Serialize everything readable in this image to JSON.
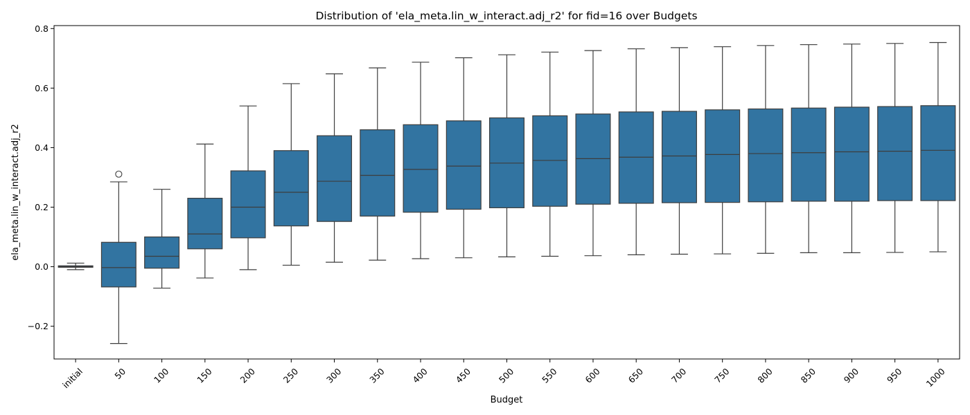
{
  "chart_data": {
    "type": "box",
    "title": "Distribution of 'ela_meta.lin_w_interact.adj_r2' for fid=16 over Budgets",
    "xlabel": "Budget",
    "ylabel": "ela_meta.lin_w_interact.adj_r2",
    "ylim": [
      -0.31,
      0.81
    ],
    "yticks": [
      -0.2,
      0.0,
      0.2,
      0.4,
      0.6,
      0.8
    ],
    "ytick_labels": [
      "−0.2",
      "0.0",
      "0.2",
      "0.4",
      "0.6",
      "0.8"
    ],
    "grid": false,
    "box_color": "#3274a1",
    "line_color": "#3d3d3d",
    "categories": [
      "initial",
      "50",
      "100",
      "150",
      "200",
      "250",
      "300",
      "350",
      "400",
      "450",
      "500",
      "550",
      "600",
      "650",
      "700",
      "750",
      "800",
      "850",
      "900",
      "950",
      "1000"
    ],
    "boxes": [
      {
        "whisker_low": -0.01,
        "q1": -0.002,
        "median": 0.0,
        "q3": 0.003,
        "whisker_high": 0.012,
        "outliers": []
      },
      {
        "whisker_low": -0.258,
        "q1": -0.068,
        "median": -0.003,
        "q3": 0.082,
        "whisker_high": 0.285,
        "outliers": [
          0.311
        ]
      },
      {
        "whisker_low": -0.072,
        "q1": -0.005,
        "median": 0.035,
        "q3": 0.1,
        "whisker_high": 0.26,
        "outliers": []
      },
      {
        "whisker_low": -0.038,
        "q1": 0.06,
        "median": 0.11,
        "q3": 0.23,
        "whisker_high": 0.412,
        "outliers": []
      },
      {
        "whisker_low": -0.01,
        "q1": 0.097,
        "median": 0.2,
        "q3": 0.322,
        "whisker_high": 0.54,
        "outliers": []
      },
      {
        "whisker_low": 0.005,
        "q1": 0.137,
        "median": 0.25,
        "q3": 0.39,
        "whisker_high": 0.615,
        "outliers": []
      },
      {
        "whisker_low": 0.015,
        "q1": 0.152,
        "median": 0.287,
        "q3": 0.44,
        "whisker_high": 0.648,
        "outliers": []
      },
      {
        "whisker_low": 0.022,
        "q1": 0.17,
        "median": 0.307,
        "q3": 0.46,
        "whisker_high": 0.668,
        "outliers": []
      },
      {
        "whisker_low": 0.027,
        "q1": 0.183,
        "median": 0.327,
        "q3": 0.477,
        "whisker_high": 0.687,
        "outliers": []
      },
      {
        "whisker_low": 0.03,
        "q1": 0.193,
        "median": 0.338,
        "q3": 0.49,
        "whisker_high": 0.702,
        "outliers": []
      },
      {
        "whisker_low": 0.033,
        "q1": 0.198,
        "median": 0.348,
        "q3": 0.5,
        "whisker_high": 0.712,
        "outliers": []
      },
      {
        "whisker_low": 0.035,
        "q1": 0.203,
        "median": 0.357,
        "q3": 0.507,
        "whisker_high": 0.721,
        "outliers": []
      },
      {
        "whisker_low": 0.037,
        "q1": 0.21,
        "median": 0.363,
        "q3": 0.513,
        "whisker_high": 0.726,
        "outliers": []
      },
      {
        "whisker_low": 0.04,
        "q1": 0.213,
        "median": 0.368,
        "q3": 0.52,
        "whisker_high": 0.732,
        "outliers": []
      },
      {
        "whisker_low": 0.042,
        "q1": 0.215,
        "median": 0.372,
        "q3": 0.522,
        "whisker_high": 0.736,
        "outliers": []
      },
      {
        "whisker_low": 0.043,
        "q1": 0.216,
        "median": 0.377,
        "q3": 0.527,
        "whisker_high": 0.739,
        "outliers": []
      },
      {
        "whisker_low": 0.045,
        "q1": 0.218,
        "median": 0.38,
        "q3": 0.53,
        "whisker_high": 0.743,
        "outliers": []
      },
      {
        "whisker_low": 0.047,
        "q1": 0.22,
        "median": 0.383,
        "q3": 0.533,
        "whisker_high": 0.746,
        "outliers": []
      },
      {
        "whisker_low": 0.047,
        "q1": 0.22,
        "median": 0.386,
        "q3": 0.536,
        "whisker_high": 0.748,
        "outliers": []
      },
      {
        "whisker_low": 0.048,
        "q1": 0.222,
        "median": 0.388,
        "q3": 0.538,
        "whisker_high": 0.75,
        "outliers": []
      },
      {
        "whisker_low": 0.05,
        "q1": 0.222,
        "median": 0.391,
        "q3": 0.541,
        "whisker_high": 0.753,
        "outliers": []
      }
    ]
  }
}
